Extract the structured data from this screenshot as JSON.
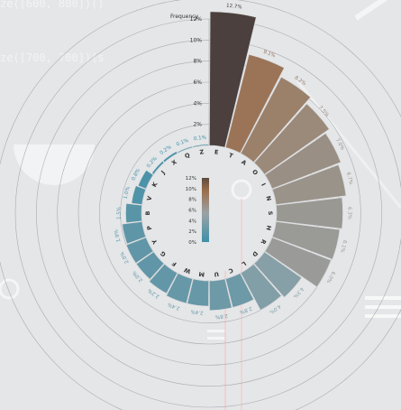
{
  "background_code": {
    "line1": "ze([600, 800])()",
    "line2": "ze([700, 700])(s"
  },
  "chart_data": {
    "type": "bar",
    "subtype": "radial",
    "categories": [
      "E",
      "T",
      "A",
      "O",
      "I",
      "N",
      "S",
      "H",
      "R",
      "D",
      "L",
      "C",
      "U",
      "M",
      "W",
      "F",
      "G",
      "Y",
      "P",
      "B",
      "V",
      "K",
      "J",
      "X",
      "Q",
      "Z"
    ],
    "values": [
      12.7,
      9.1,
      8.2,
      7.5,
      7.0,
      6.7,
      6.3,
      6.1,
      6.0,
      4.3,
      4.0,
      2.8,
      2.8,
      2.4,
      2.4,
      2.2,
      2.0,
      2.0,
      1.9,
      1.5,
      1.0,
      0.8,
      0.2,
      0.2,
      0.1,
      0.1
    ],
    "value_labels": [
      "12.7%",
      "9.1%",
      "8.2%",
      "7.5%",
      "7.0%",
      "6.7%",
      "6.3%",
      "6.1%",
      "6.0%",
      "4.3%",
      "4.0%",
      "2.8%",
      "2.8%",
      "2.4%",
      "2.4%",
      "2.2%",
      "2.0%",
      "2.0%",
      "1.9%",
      "1.5%",
      "1.0%",
      "0.8%",
      "0.2%",
      "0.2%",
      "0.1%",
      "0.1%"
    ],
    "radial_ticks": [
      "2%",
      "4%",
      "6%",
      "8%",
      "10%",
      "12%"
    ],
    "axis_title": "Frequency",
    "colorbar_ticks": [
      "12%",
      "10%",
      "8%",
      "6%",
      "4%",
      "2%",
      "0%"
    ],
    "ylim": [
      0,
      12
    ],
    "colors": {
      "low": "#3e8fa8",
      "mid": "#9aa3a6",
      "high": "#9b6e4c",
      "top": "#5d4a40"
    }
  }
}
